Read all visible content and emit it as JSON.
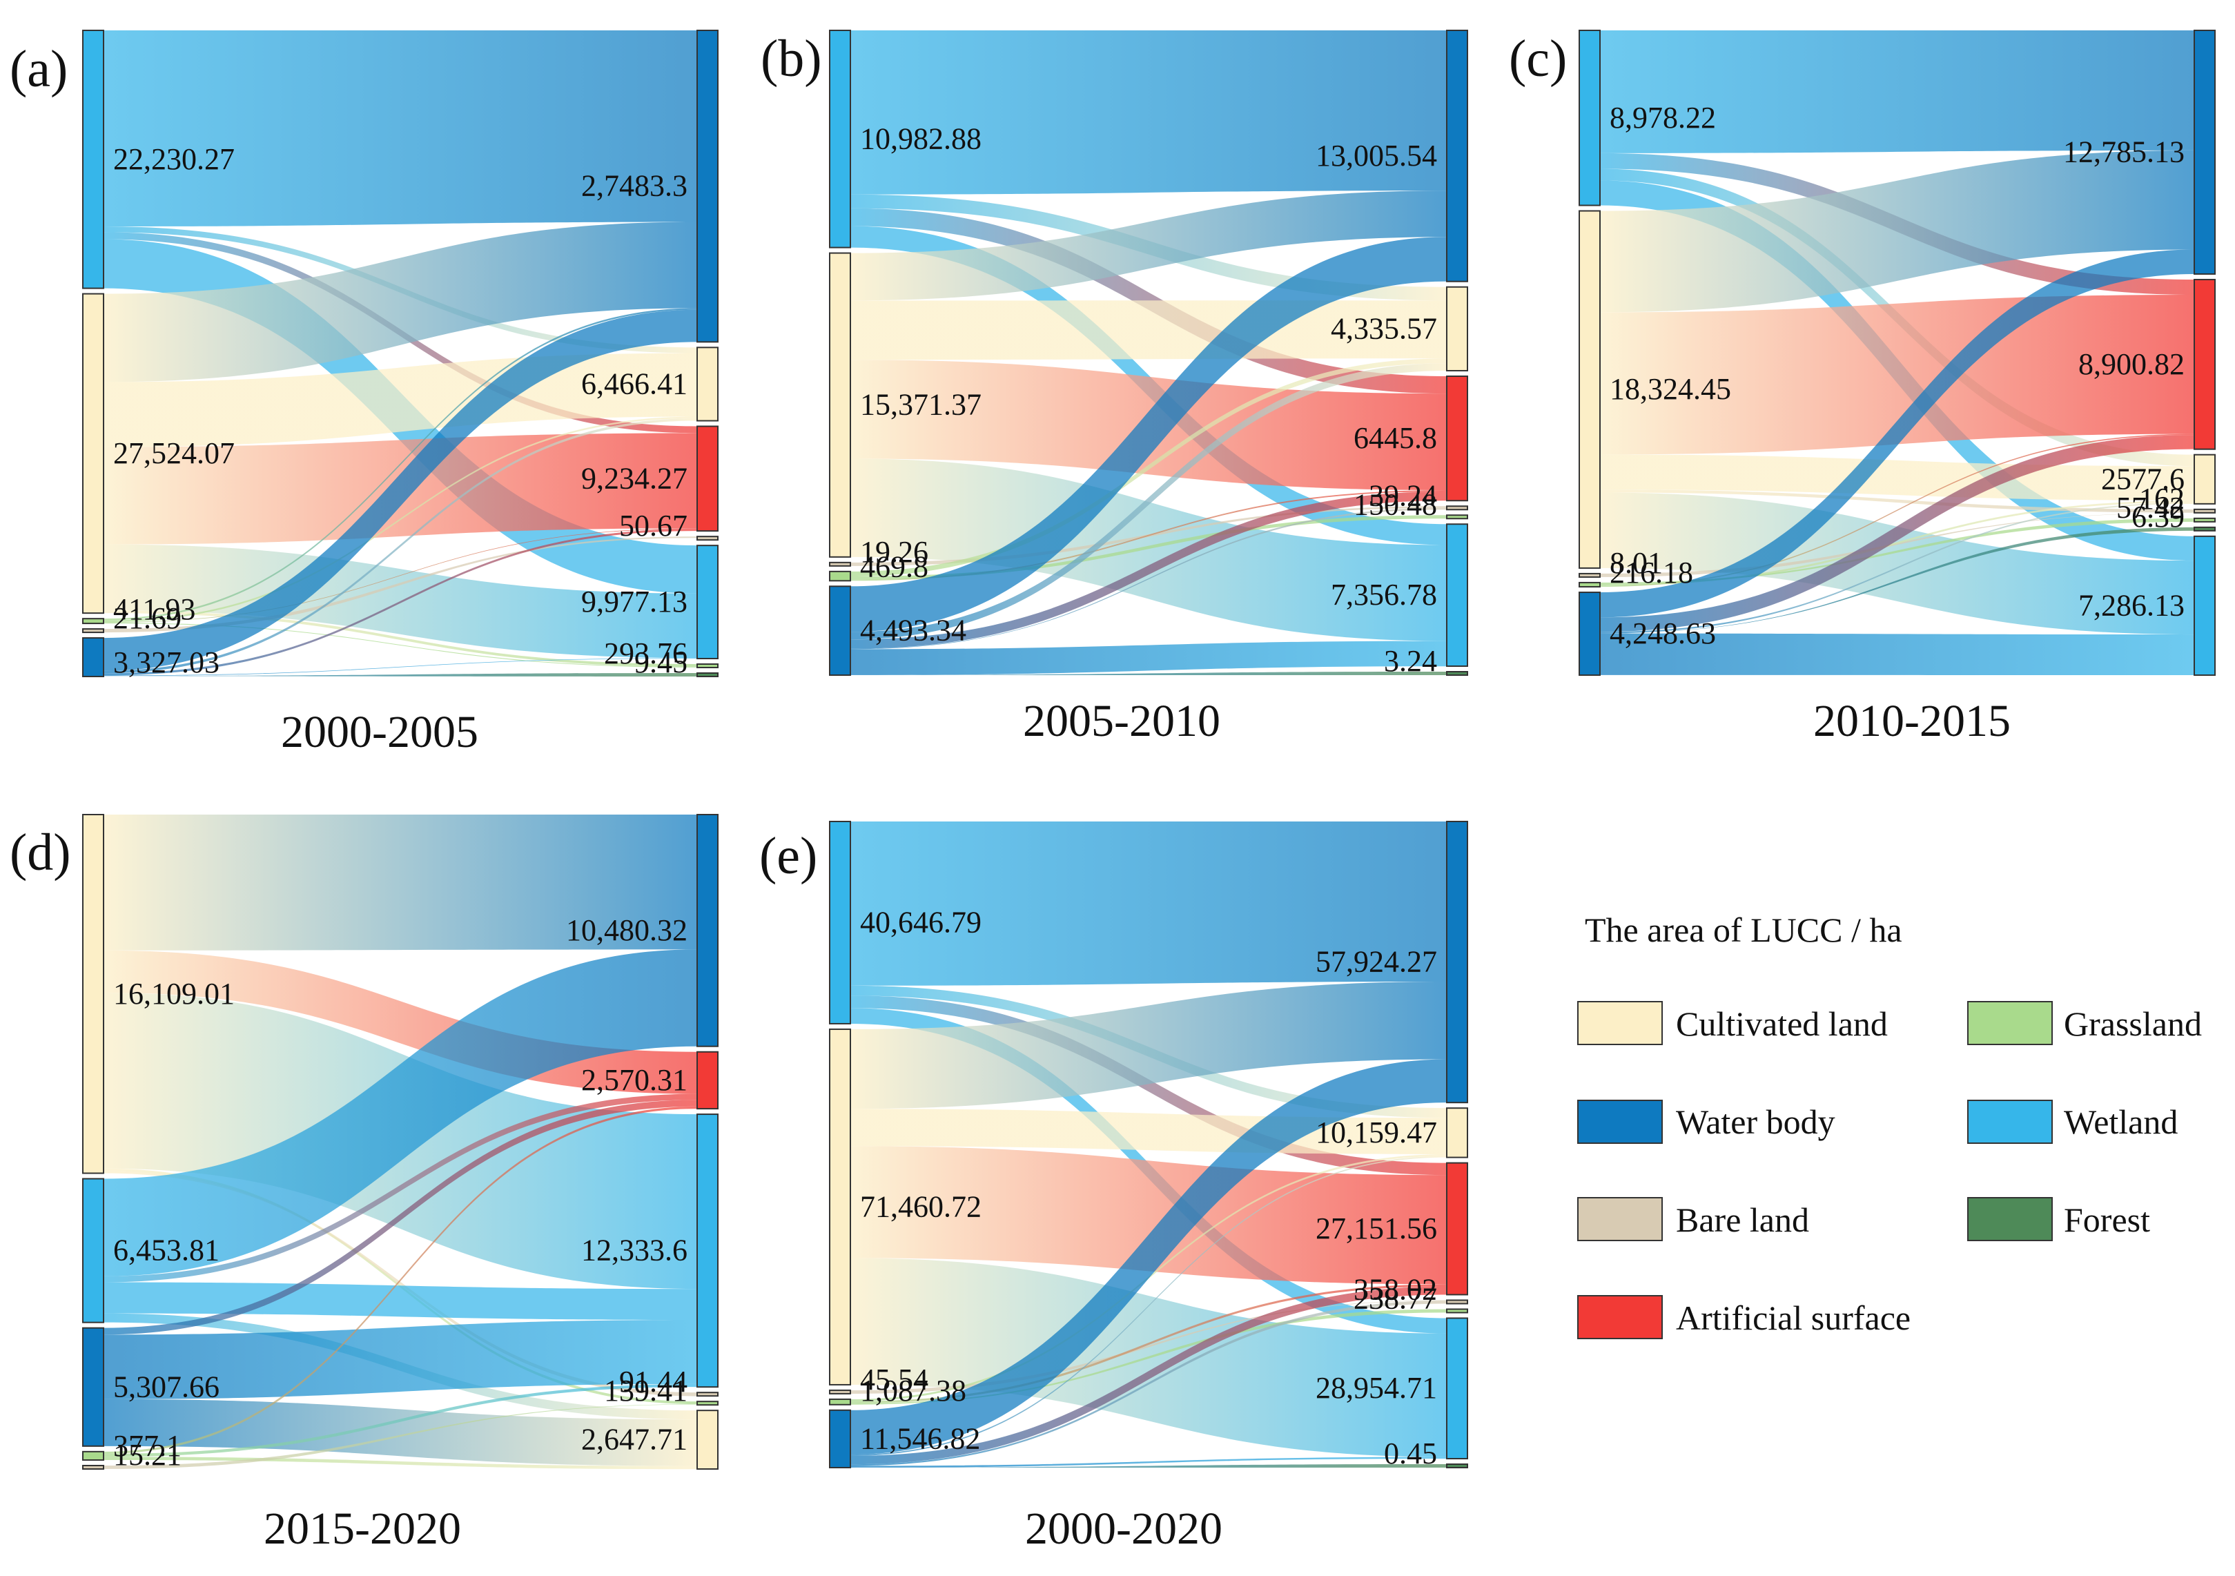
{
  "colors": {
    "Cultivated land": "#FCEFC7",
    "Water body": "#0E7AC0",
    "Bare land": "#D8CBB3",
    "Artificial surface": "#F23A36",
    "Grassland": "#A9DA8C",
    "Wetland": "#36B6EA",
    "Forest": "#4E8A58"
  },
  "legend": {
    "title": "The area of LUCC / ha",
    "items": [
      "Cultivated land",
      "Grassland",
      "Water body",
      "Wetland",
      "Bare land",
      "Forest",
      "Artificial surface"
    ]
  },
  "chart_data": [
    {
      "type": "sankey",
      "letter": "(a)",
      "title": "2000-2005",
      "source": [
        {
          "class": "Wetland",
          "value": 22230.27,
          "label": "22,230.27"
        },
        {
          "class": "Cultivated land",
          "value": 27524.07,
          "label": "27,524.07"
        },
        {
          "class": "Grassland",
          "value": 411.93,
          "label": "411.93"
        },
        {
          "class": "Bare land",
          "value": 21.69,
          "label": "21.69"
        },
        {
          "class": "Water body",
          "value": 3327.03,
          "label": "3,327.03"
        }
      ],
      "target": [
        {
          "class": "Water body",
          "value": 27483.3,
          "label": "2,7483.3"
        },
        {
          "class": "Cultivated land",
          "value": 6466.41,
          "label": "6,466.41"
        },
        {
          "class": "Artificial surface",
          "value": 9234.27,
          "label": "9,234.27"
        },
        {
          "class": "Bare land",
          "value": 50.67,
          "label": "50.67"
        },
        {
          "class": "Wetland",
          "value": 9977.13,
          "label": "9,977.13"
        },
        {
          "class": "Grassland",
          "value": 293.76,
          "label": "293.76"
        },
        {
          "class": "Forest",
          "value": 9.45,
          "label": "9.45"
        }
      ],
      "flows": [
        {
          "from": "Wetland",
          "to": "Water body",
          "value": 16900
        },
        {
          "from": "Wetland",
          "to": "Cultivated land",
          "value": 500
        },
        {
          "from": "Wetland",
          "to": "Artificial surface",
          "value": 600
        },
        {
          "from": "Wetland",
          "to": "Wetland",
          "value": 4230
        },
        {
          "from": "Cultivated land",
          "to": "Water body",
          "value": 7600
        },
        {
          "from": "Cultivated land",
          "to": "Cultivated land",
          "value": 5600
        },
        {
          "from": "Cultivated land",
          "to": "Artificial surface",
          "value": 8400
        },
        {
          "from": "Cultivated land",
          "to": "Wetland",
          "value": 5700
        },
        {
          "from": "Cultivated land",
          "to": "Grassland",
          "value": 224
        },
        {
          "from": "Grassland",
          "to": "Water body",
          "value": 150
        },
        {
          "from": "Grassland",
          "to": "Cultivated land",
          "value": 150
        },
        {
          "from": "Grassland",
          "to": "Artificial surface",
          "value": 50
        },
        {
          "from": "Grassland",
          "to": "Grassland",
          "value": 62
        },
        {
          "from": "Bare land",
          "to": "Bare land",
          "value": 21.69
        },
        {
          "from": "Water body",
          "to": "Water body",
          "value": 2833
        },
        {
          "from": "Water body",
          "to": "Cultivated land",
          "value": 216
        },
        {
          "from": "Water body",
          "to": "Artificial surface",
          "value": 184
        },
        {
          "from": "Water body",
          "to": "Wetland",
          "value": 47
        },
        {
          "from": "Water body",
          "to": "Forest",
          "value": 9.45
        }
      ]
    },
    {
      "type": "sankey",
      "letter": "(b)",
      "title": "2005-2010",
      "source": [
        {
          "class": "Wetland",
          "value": 10982.88,
          "label": "10,982.88"
        },
        {
          "class": "Cultivated land",
          "value": 15371.37,
          "label": "15,371.37"
        },
        {
          "class": "Bare land",
          "value": 19.26,
          "label": "19.26"
        },
        {
          "class": "Grassland",
          "value": 469.8,
          "label": "469.8"
        },
        {
          "class": "Water body",
          "value": 4493.34,
          "label": "4,493.34"
        }
      ],
      "target": [
        {
          "class": "Water body",
          "value": 13005.54,
          "label": "13,005.54"
        },
        {
          "class": "Cultivated land",
          "value": 4335.57,
          "label": "4,335.57"
        },
        {
          "class": "Artificial surface",
          "value": 6445.8,
          "label": "6445.8"
        },
        {
          "class": "Bare land",
          "value": 39.24,
          "label": "39.24"
        },
        {
          "class": "Grassland",
          "value": 150.48,
          "label": "150.48"
        },
        {
          "class": "Wetland",
          "value": 7356.78,
          "label": "7,356.78"
        },
        {
          "class": "Forest",
          "value": 3.24,
          "label": "3.24"
        }
      ],
      "flows": [
        {
          "from": "Wetland",
          "to": "Water body",
          "value": 8300
        },
        {
          "from": "Wetland",
          "to": "Cultivated land",
          "value": 700
        },
        {
          "from": "Wetland",
          "to": "Artificial surface",
          "value": 900
        },
        {
          "from": "Wetland",
          "to": "Wetland",
          "value": 1083
        },
        {
          "from": "Cultivated land",
          "to": "Water body",
          "value": 2400
        },
        {
          "from": "Cultivated land",
          "to": "Cultivated land",
          "value": 3000
        },
        {
          "from": "Cultivated land",
          "to": "Artificial surface",
          "value": 5000
        },
        {
          "from": "Cultivated land",
          "to": "Wetland",
          "value": 4971
        },
        {
          "from": "Bare land",
          "to": "Bare land",
          "value": 19.26
        },
        {
          "from": "Grassland",
          "to": "Cultivated land",
          "value": 250
        },
        {
          "from": "Grassland",
          "to": "Grassland",
          "value": 150
        },
        {
          "from": "Grassland",
          "to": "Artificial surface",
          "value": 70
        },
        {
          "from": "Water body",
          "to": "Water body",
          "value": 2300
        },
        {
          "from": "Water body",
          "to": "Cultivated land",
          "value": 385
        },
        {
          "from": "Water body",
          "to": "Artificial surface",
          "value": 475
        },
        {
          "from": "Water body",
          "to": "Bare land",
          "value": 20
        },
        {
          "from": "Water body",
          "to": "Wetland",
          "value": 1310
        },
        {
          "from": "Water body",
          "to": "Forest",
          "value": 3.24
        }
      ]
    },
    {
      "type": "sankey",
      "letter": "(c)",
      "title": "2010-2015",
      "source": [
        {
          "class": "Wetland",
          "value": 8978.22,
          "label": "8,978.22"
        },
        {
          "class": "Cultivated land",
          "value": 18324.45,
          "label": "18,324.45"
        },
        {
          "class": "Bare land",
          "value": 8.01,
          "label": "8.01"
        },
        {
          "class": "Grassland",
          "value": 216.18,
          "label": "216.18"
        },
        {
          "class": "Water body",
          "value": 4248.63,
          "label": "4,248.63"
        }
      ],
      "target": [
        {
          "class": "Water body",
          "value": 12785.13,
          "label": "12,785.13"
        },
        {
          "class": "Artificial surface",
          "value": 8900.82,
          "label": "8,900.82"
        },
        {
          "class": "Cultivated land",
          "value": 2577.6,
          "label": "2577.6"
        },
        {
          "class": "Bare land",
          "value": 162,
          "label": "162"
        },
        {
          "class": "Grassland",
          "value": 57.42,
          "label": "57.42"
        },
        {
          "class": "Forest",
          "value": 6.39,
          "label": "6.39"
        },
        {
          "class": "Wetland",
          "value": 7286.13,
          "label": "7,286.13"
        }
      ],
      "flows": [
        {
          "from": "Wetland",
          "to": "Water body",
          "value": 6300
        },
        {
          "from": "Wetland",
          "to": "Artificial surface",
          "value": 800
        },
        {
          "from": "Wetland",
          "to": "Cultivated land",
          "value": 600
        },
        {
          "from": "Wetland",
          "to": "Wetland",
          "value": 1278
        },
        {
          "from": "Cultivated land",
          "to": "Water body",
          "value": 5200
        },
        {
          "from": "Cultivated land",
          "to": "Artificial surface",
          "value": 7300
        },
        {
          "from": "Cultivated land",
          "to": "Cultivated land",
          "value": 1800
        },
        {
          "from": "Cultivated land",
          "to": "Bare land",
          "value": 150
        },
        {
          "from": "Cultivated land",
          "to": "Wetland",
          "value": 3874
        },
        {
          "from": "Bare land",
          "to": "Bare land",
          "value": 8.01
        },
        {
          "from": "Grassland",
          "to": "Grassland",
          "value": 57.42
        },
        {
          "from": "Grassland",
          "to": "Cultivated land",
          "value": 100
        },
        {
          "from": "Grassland",
          "to": "Artificial surface",
          "value": 58
        },
        {
          "from": "Water body",
          "to": "Water body",
          "value": 1285
        },
        {
          "from": "Water body",
          "to": "Artificial surface",
          "value": 742
        },
        {
          "from": "Water body",
          "to": "Cultivated land",
          "value": 78
        },
        {
          "from": "Water body",
          "to": "Forest",
          "value": 6.39
        },
        {
          "from": "Water body",
          "to": "Wetland",
          "value": 2134
        }
      ]
    },
    {
      "type": "sankey",
      "letter": "(d)",
      "title": "2015-2020",
      "source": [
        {
          "class": "Cultivated land",
          "value": 16109.01,
          "label": "16,109.01"
        },
        {
          "class": "Wetland",
          "value": 6453.81,
          "label": "6,453.81"
        },
        {
          "class": "Water body",
          "value": 5307.66,
          "label": "5,307.66"
        },
        {
          "class": "Grassland",
          "value": 377.1,
          "label": "377.1"
        },
        {
          "class": "Bare land",
          "value": 15.21,
          "label": "15.21"
        }
      ],
      "target": [
        {
          "class": "Water body",
          "value": 10480.32,
          "label": "10,480.32"
        },
        {
          "class": "Artificial surface",
          "value": 2570.31,
          "label": "2,570.31"
        },
        {
          "class": "Wetland",
          "value": 12333.6,
          "label": "12,333.6"
        },
        {
          "class": "Bare land",
          "value": 91.44,
          "label": "91.44"
        },
        {
          "class": "Grassland",
          "value": 139.41,
          "label": "139.41"
        },
        {
          "class": "Cultivated land",
          "value": 2647.71,
          "label": "2,647.71"
        }
      ],
      "flows": [
        {
          "from": "Cultivated land",
          "to": "Water body",
          "value": 6100
        },
        {
          "from": "Cultivated land",
          "to": "Artificial surface",
          "value": 1900
        },
        {
          "from": "Cultivated land",
          "to": "Wetland",
          "value": 7900
        },
        {
          "from": "Cultivated land",
          "to": "Grassland",
          "value": 109
        },
        {
          "from": "Cultivated land",
          "to": "Bare land",
          "value": 100
        },
        {
          "from": "Wetland",
          "to": "Water body",
          "value": 4380
        },
        {
          "from": "Wetland",
          "to": "Artificial surface",
          "value": 270
        },
        {
          "from": "Wetland",
          "to": "Wetland",
          "value": 1400
        },
        {
          "from": "Wetland",
          "to": "Cultivated land",
          "value": 404
        },
        {
          "from": "Water body",
          "to": "Artificial surface",
          "value": 300
        },
        {
          "from": "Water body",
          "to": "Wetland",
          "value": 2900
        },
        {
          "from": "Water body",
          "to": "Cultivated land",
          "value": 2108
        },
        {
          "from": "Grassland",
          "to": "Artificial surface",
          "value": 100
        },
        {
          "from": "Grassland",
          "to": "Wetland",
          "value": 133
        },
        {
          "from": "Grassland",
          "to": "Cultivated land",
          "value": 144
        },
        {
          "from": "Bare land",
          "to": "Grassland",
          "value": 15.21
        }
      ]
    },
    {
      "type": "sankey",
      "letter": "(e)",
      "title": "2000-2020",
      "source": [
        {
          "class": "Wetland",
          "value": 40646.79,
          "label": "40,646.79"
        },
        {
          "class": "Cultivated land",
          "value": 71460.72,
          "label": "71,460.72"
        },
        {
          "class": "Bare land",
          "value": 45.54,
          "label": "45.54"
        },
        {
          "class": "Grassland",
          "value": 1087.38,
          "label": "1,087.38"
        },
        {
          "class": "Water body",
          "value": 11546.82,
          "label": "11,546.82"
        }
      ],
      "target": [
        {
          "class": "Water body",
          "value": 57924.27,
          "label": "57,924.27"
        },
        {
          "class": "Cultivated land",
          "value": 10159.47,
          "label": "10,159.47"
        },
        {
          "class": "Artificial surface",
          "value": 27151.56,
          "label": "27,151.56"
        },
        {
          "class": "Bare land",
          "value": 358.02,
          "label": "358.02"
        },
        {
          "class": "Grassland",
          "value": 238.77,
          "label": "238.77"
        },
        {
          "class": "Wetland",
          "value": 28954.71,
          "label": "28,954.71"
        },
        {
          "class": "Forest",
          "value": 0.45,
          "label": "0.45"
        }
      ],
      "flows": [
        {
          "from": "Wetland",
          "to": "Water body",
          "value": 33000
        },
        {
          "from": "Wetland",
          "to": "Cultivated land",
          "value": 2000
        },
        {
          "from": "Wetland",
          "to": "Artificial surface",
          "value": 2500
        },
        {
          "from": "Wetland",
          "to": "Wetland",
          "value": 3147
        },
        {
          "from": "Cultivated land",
          "to": "Water body",
          "value": 16000
        },
        {
          "from": "Cultivated land",
          "to": "Cultivated land",
          "value": 7500
        },
        {
          "from": "Cultivated land",
          "to": "Artificial surface",
          "value": 22500
        },
        {
          "from": "Cultivated land",
          "to": "Wetland",
          "value": 25461
        },
        {
          "from": "Bare land",
          "to": "Bare land",
          "value": 45.54
        },
        {
          "from": "Grassland",
          "to": "Cultivated land",
          "value": 400
        },
        {
          "from": "Grassland",
          "to": "Artificial surface",
          "value": 450
        },
        {
          "from": "Grassland",
          "to": "Grassland",
          "value": 237
        },
        {
          "from": "Water body",
          "to": "Water body",
          "value": 8924
        },
        {
          "from": "Water body",
          "to": "Cultivated land",
          "value": 259
        },
        {
          "from": "Water body",
          "to": "Artificial surface",
          "value": 1700
        },
        {
          "from": "Water body",
          "to": "Bare land",
          "value": 312
        },
        {
          "from": "Water body",
          "to": "Wetland",
          "value": 347
        },
        {
          "from": "Water body",
          "to": "Forest",
          "value": 0.45
        }
      ]
    }
  ]
}
